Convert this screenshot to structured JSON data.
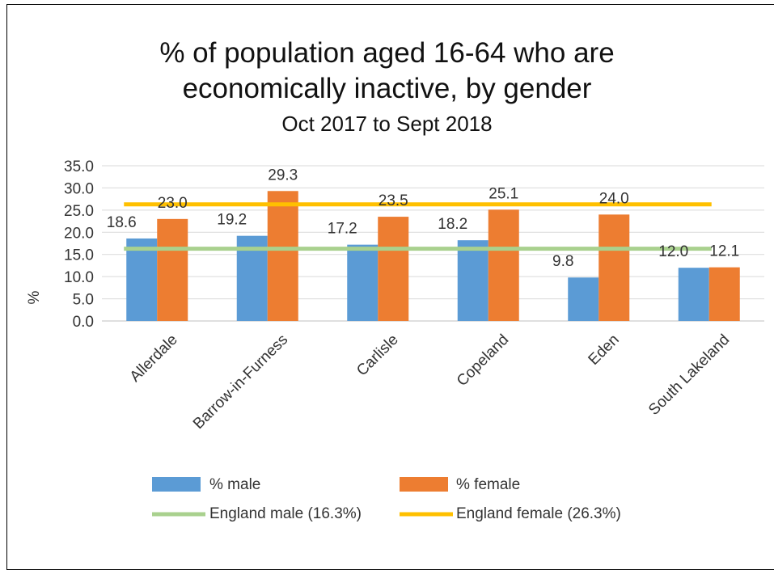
{
  "chart_data": {
    "type": "bar",
    "title": "% of population aged 16-64 who are",
    "title_line2": "economically inactive, by gender",
    "subtitle": "Oct 2017 to Sept 2018",
    "xlabel": "",
    "ylabel": "%",
    "ylim": [
      0,
      35
    ],
    "yticks": [
      "0.0",
      "5.0",
      "10.0",
      "15.0",
      "20.0",
      "25.0",
      "30.0",
      "35.0"
    ],
    "grid": true,
    "legend_position": "bottom",
    "categories": [
      "Allerdale",
      "Barrow-in-Furness",
      "Carlisle",
      "Copeland",
      "Eden",
      "South Lakeland"
    ],
    "series": [
      {
        "name": "% male",
        "color": "#5B9BD5",
        "values": [
          18.6,
          19.2,
          17.2,
          18.2,
          9.8,
          12.0
        ],
        "labels": [
          "18.6",
          "19.2",
          "17.2",
          "18.2",
          "9.8",
          "12.0"
        ]
      },
      {
        "name": "% female",
        "color": "#ED7D31",
        "values": [
          23.0,
          29.3,
          23.5,
          25.1,
          24.0,
          12.1
        ],
        "labels": [
          "23.0",
          "29.3",
          "23.5",
          "25.1",
          "24.0",
          "12.1"
        ]
      }
    ],
    "reference_lines": [
      {
        "name": "England male (16.3%)",
        "value": 16.3,
        "color": "#A9D18E"
      },
      {
        "name": "England female (26.3%)",
        "value": 26.3,
        "color": "#FFC000"
      }
    ]
  }
}
